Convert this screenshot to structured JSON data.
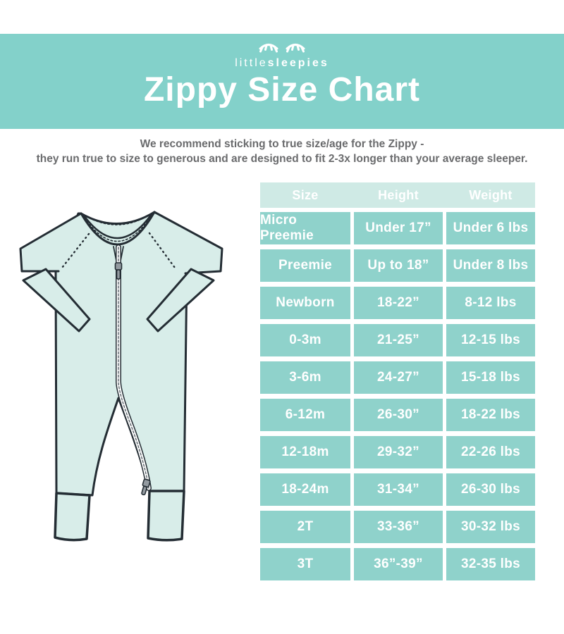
{
  "brand": {
    "logo_light": "little",
    "logo_bold": "sleepies",
    "eyes_icon": "sleepy-closed-eyes"
  },
  "header": {
    "title": "Zippy Size Chart"
  },
  "intro": {
    "line1": "We recommend sticking to true size/age for the Zippy -",
    "line2": "they run true to size to generous and are designed to fit 2-3x longer than your average sleeper."
  },
  "illustration": {
    "alt": "Mint green Zippy sleeper romper with two-way zipper, fold-over mitten cuffs and ribbed leg cuffs"
  },
  "chart_data": {
    "type": "table",
    "columns": [
      "Size",
      "Height",
      "Weight"
    ],
    "rows": [
      [
        "Micro Preemie",
        "Under 17”",
        "Under 6 lbs"
      ],
      [
        "Preemie",
        "Up to 18”",
        "Under 8 lbs"
      ],
      [
        "Newborn",
        "18-22”",
        "8-12 lbs"
      ],
      [
        "0-3m",
        "21-25”",
        "12-15 lbs"
      ],
      [
        "3-6m",
        "24-27”",
        "15-18 lbs"
      ],
      [
        "6-12m",
        "26-30”",
        "18-22 lbs"
      ],
      [
        "12-18m",
        "29-32”",
        "22-26 lbs"
      ],
      [
        "18-24m",
        "31-34”",
        "26-30 lbs"
      ],
      [
        "2T",
        "33-36”",
        "30-32 lbs"
      ],
      [
        "3T",
        "36”-39”",
        "32-35 lbs"
      ]
    ]
  },
  "colors": {
    "banner_teal": "#83d1ca",
    "cell_teal": "#8fd2cb",
    "header_teal": "#cfeae5",
    "text_gray": "#6a6b6d",
    "garment_mint": "#d8ede9",
    "outline": "#242d34",
    "zipper_pull": "#939aa0"
  }
}
